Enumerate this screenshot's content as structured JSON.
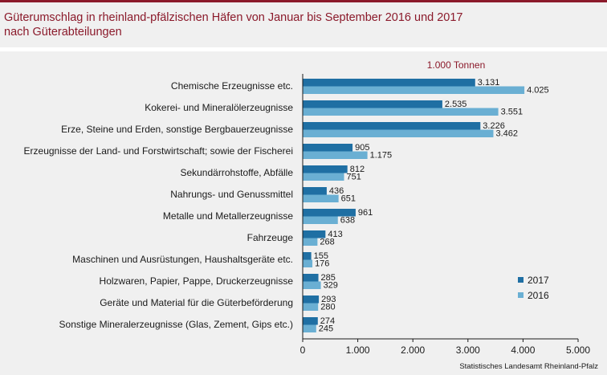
{
  "header": {
    "title_line1": "Güterumschlag in rheinland-pfälzischen Häfen von Januar bis September 2016 und 2017",
    "title_line2": "nach Güterabteilungen"
  },
  "source": "Statistisches Landesamt Rheinland-Pfalz",
  "colors": {
    "accent": "#8b1a2b",
    "series_2017": "#1f6fa3",
    "series_2016": "#6aafd3"
  },
  "chart_data": {
    "type": "bar",
    "orientation": "horizontal",
    "unit_label": "1.000 Tonnen",
    "categories": [
      "Chemische Erzeugnisse etc.",
      "Kokerei- und Mineralölerzeugnisse",
      "Erze, Steine und Erden, sonstige Bergbauerzeugnisse",
      "Erzeugnisse der Land- und Forstwirtschaft; sowie der Fischerei",
      "Sekundärrohstoffe, Abfälle",
      "Nahrungs- und Genussmittel",
      "Metalle und Metallerzeugnisse",
      "Fahrzeuge",
      "Maschinen und Ausrüstungen, Haushaltsgeräte etc.",
      "Holzwaren, Papier, Pappe, Druckerzeugnisse",
      "Geräte und Material für die Güterbeförderung",
      "Sonstige Mineralerzeugnisse (Glas, Zement, Gips etc.)"
    ],
    "series": [
      {
        "name": "2017",
        "values": [
          3131,
          2535,
          3226,
          905,
          812,
          436,
          961,
          413,
          155,
          285,
          293,
          274
        ],
        "labels": [
          "3.131",
          "2.535",
          "3.226",
          "905",
          "812",
          "436",
          "961",
          "413",
          "155",
          "285",
          "293",
          "274"
        ]
      },
      {
        "name": "2016",
        "values": [
          4025,
          3551,
          3462,
          1175,
          751,
          651,
          638,
          268,
          176,
          329,
          280,
          245
        ],
        "labels": [
          "4.025",
          "3.551",
          "3.462",
          "1.175",
          "751",
          "651",
          "638",
          "268",
          "176",
          "329",
          "280",
          "245"
        ]
      }
    ],
    "xlim": [
      0,
      5000
    ],
    "xticks": [
      0,
      1000,
      2000,
      3000,
      4000,
      5000
    ],
    "xtick_labels": [
      "0",
      "1.000",
      "2.000",
      "3.000",
      "4.000",
      "5.000"
    ],
    "legend_position": "bottom-right",
    "grid": false
  }
}
